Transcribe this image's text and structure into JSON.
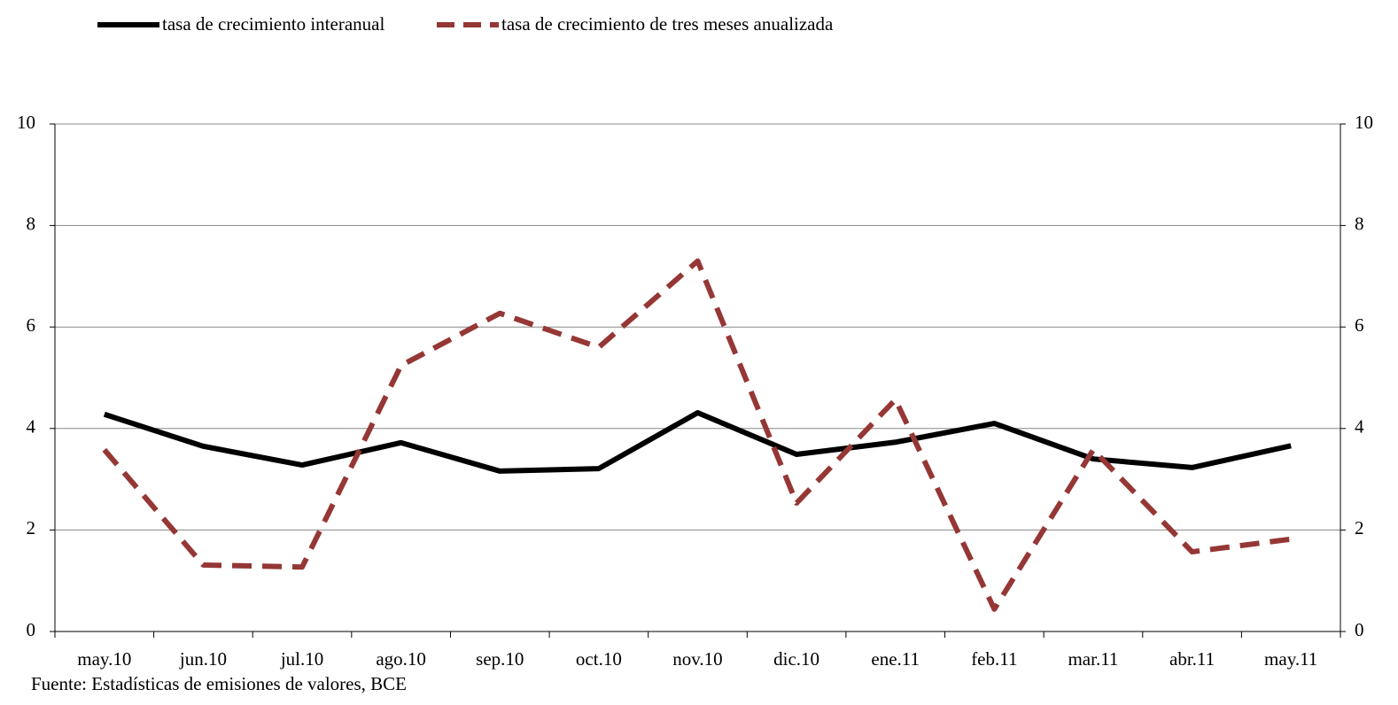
{
  "chart_data": {
    "type": "line",
    "categories": [
      "may.10",
      "jun.10",
      "jul.10",
      "ago.10",
      "sep.10",
      "oct.10",
      "nov.10",
      "dic.10",
      "ene.11",
      "feb.11",
      "mar.11",
      "abr.11",
      "may.11"
    ],
    "series": [
      {
        "name": "tasa de crecimiento interanual",
        "color": "#000000",
        "dash": false,
        "values": [
          4.28,
          3.65,
          3.28,
          3.72,
          3.16,
          3.21,
          4.31,
          3.49,
          3.73,
          4.1,
          3.4,
          3.23,
          3.66
        ]
      },
      {
        "name": "tasa de crecimiento de tres meses anualizada",
        "color": "#953735",
        "dash": true,
        "values": [
          3.58,
          1.31,
          1.27,
          5.24,
          6.27,
          5.6,
          7.3,
          2.53,
          4.57,
          0.44,
          3.58,
          1.57,
          1.82
        ]
      }
    ],
    "ylim": [
      0,
      10
    ],
    "yticks": [
      0,
      2,
      4,
      6,
      8,
      10
    ],
    "y2lim": [
      0,
      10
    ],
    "y2ticks": [
      0,
      2,
      4,
      6,
      8,
      10
    ],
    "grid": true,
    "legend": "top",
    "source": "Fuente: Estadísticas de emisiones de valores, BCE"
  }
}
